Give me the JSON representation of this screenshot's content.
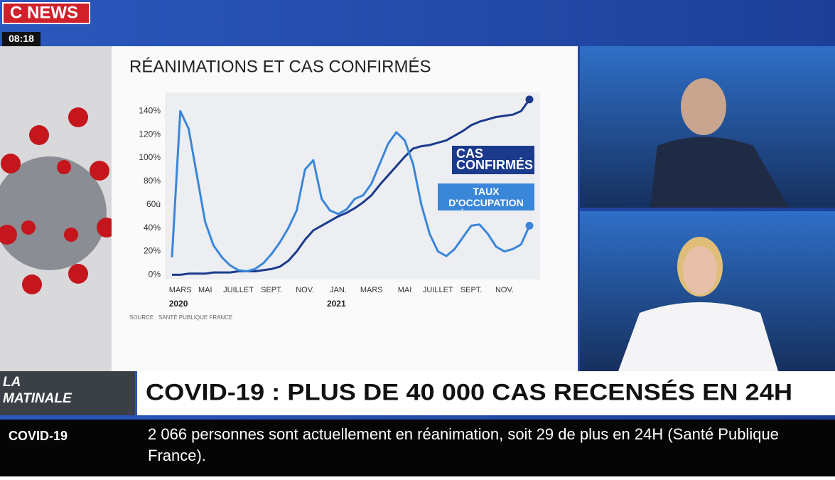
{
  "header": {
    "logo_c": "C",
    "logo_news": "NEWS",
    "time": "08:18"
  },
  "chart_data": {
    "type": "line",
    "title": "RÉANIMATIONS ET CAS CONFIRMÉS",
    "categories": [
      null,
      "MARS",
      null,
      null,
      "MAI",
      null,
      null,
      null,
      "JUILLET",
      null,
      null,
      null,
      "SEPT.",
      null,
      null,
      null,
      "NOV.",
      null,
      null,
      null,
      "JAN.",
      null,
      null,
      null,
      "MARS",
      null,
      null,
      null,
      "MAI",
      null,
      null,
      null,
      "JUILLET",
      null,
      null,
      null,
      "SEPT.",
      null,
      null,
      null,
      "NOV.",
      null,
      null,
      null
    ],
    "year_labels": [
      "2020",
      "2021"
    ],
    "series": [
      {
        "name": "CAS CONFIRMÉS",
        "color": "#1b3a8c",
        "values": [
          0,
          0,
          1,
          1,
          1,
          2,
          2,
          2,
          3,
          3,
          3,
          4,
          5,
          7,
          12,
          20,
          30,
          38,
          42,
          46,
          50,
          53,
          57,
          62,
          68,
          77,
          85,
          93,
          101,
          108,
          110,
          111,
          113,
          115,
          119,
          123,
          128,
          131,
          133,
          135,
          136,
          137,
          140,
          150
        ]
      },
      {
        "name": "TAUX D'OCCUPATION RÉANIMATION",
        "color": "#3a86d9",
        "values": [
          15,
          140,
          125,
          85,
          45,
          25,
          15,
          8,
          4,
          3,
          5,
          10,
          18,
          28,
          40,
          55,
          90,
          98,
          65,
          55,
          52,
          56,
          65,
          68,
          78,
          95,
          112,
          122,
          115,
          95,
          60,
          35,
          20,
          16,
          22,
          32,
          42,
          43,
          35,
          24,
          20,
          22,
          26,
          42
        ]
      }
    ],
    "ylim": [
      -4,
      156
    ],
    "yticks": [
      {
        "value": 0,
        "label": "0%"
      },
      {
        "value": 20,
        "label": "20%"
      },
      {
        "value": 40,
        "label": "40%"
      },
      {
        "value": 60,
        "label": "60ù"
      },
      {
        "value": 80,
        "label": "80%"
      },
      {
        "value": 100,
        "label": "100%"
      },
      {
        "value": 120,
        "label": "120%"
      },
      {
        "value": 140,
        "label": "140%"
      }
    ],
    "grid": false,
    "source": "SOURCE : SANTÉ PUBLIQUE FRANCE"
  },
  "lower_third": {
    "show": "LA MATINALE",
    "headline": "COVID-19 : PLUS DE 40 000 CAS RECENSÉS EN 24H"
  },
  "ticker": {
    "label": "COVID-19",
    "text": "2 066 personnes sont actuellement en réanimation, soit 29 de plus en 24H (Santé Publique France)."
  }
}
